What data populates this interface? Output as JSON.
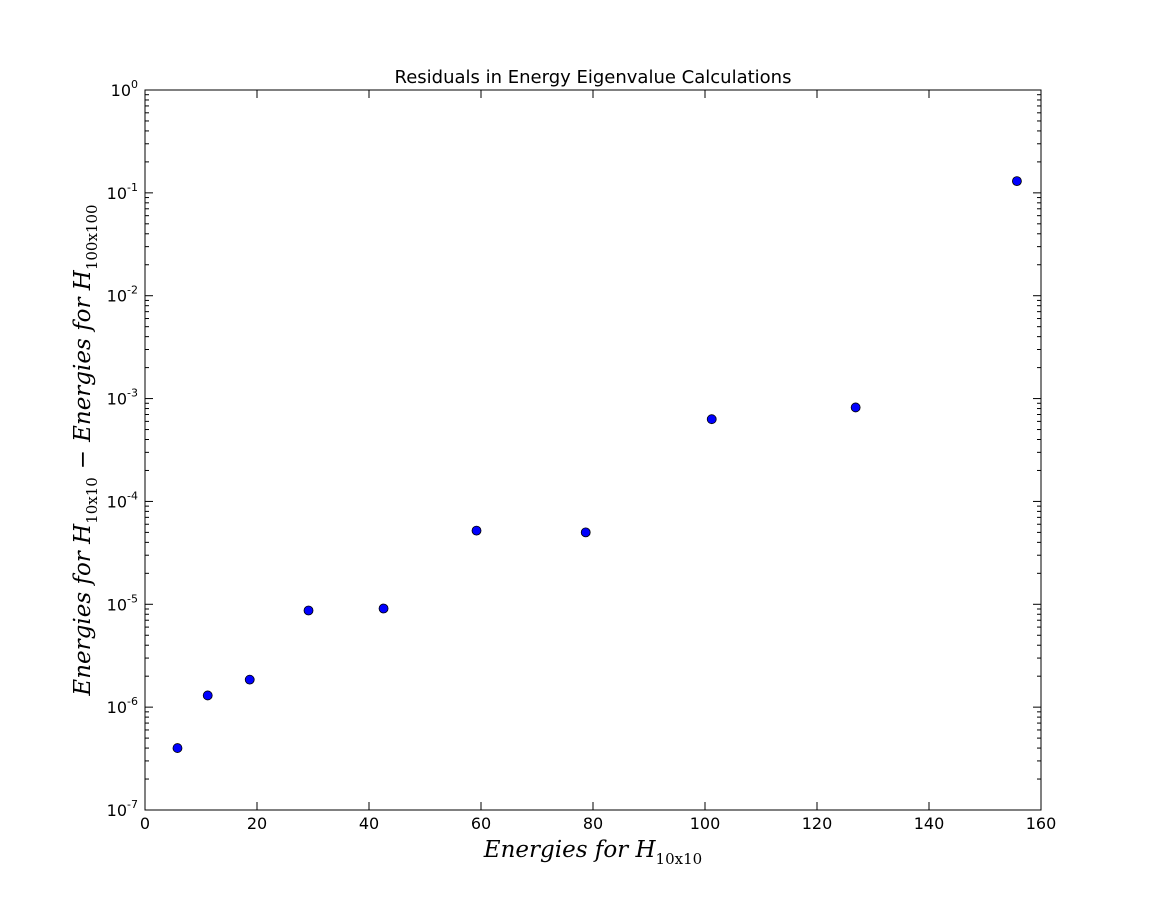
{
  "chart_data": {
    "type": "scatter",
    "title": "Residuals in Energy Eigenvalue Calculations",
    "xlabel": {
      "main": "Energies for H",
      "sub": "10x10"
    },
    "ylabel": {
      "part1": "Energies for H",
      "sub1": "10x10",
      "minus": "−",
      "part2": "Energies for H",
      "sub2": "100x100"
    },
    "xlim": [
      0,
      160
    ],
    "ylim": [
      1e-07,
      1
    ],
    "yscale": "log",
    "grid": false,
    "x_ticks": [
      "0",
      "20",
      "40",
      "60",
      "80",
      "100",
      "120",
      "140",
      "160"
    ],
    "y_ticks": [
      {
        "base": "10",
        "exp": "0"
      },
      {
        "base": "10",
        "exp": "-1"
      },
      {
        "base": "10",
        "exp": "-2"
      },
      {
        "base": "10",
        "exp": "-3"
      },
      {
        "base": "10",
        "exp": "-4"
      },
      {
        "base": "10",
        "exp": "-5"
      },
      {
        "base": "10",
        "exp": "-6"
      },
      {
        "base": "10",
        "exp": "-7"
      }
    ],
    "marker_color": "#0000ff",
    "marker_edge": "#000000",
    "points": [
      {
        "x": 5.8,
        "y": 4e-07
      },
      {
        "x": 11.2,
        "y": 1.3e-06
      },
      {
        "x": 18.7,
        "y": 1.85e-06
      },
      {
        "x": 29.2,
        "y": 8.7e-06
      },
      {
        "x": 42.6,
        "y": 9.1e-06
      },
      {
        "x": 59.2,
        "y": 5.2e-05
      },
      {
        "x": 78.7,
        "y": 5e-05
      },
      {
        "x": 101.2,
        "y": 0.00063
      },
      {
        "x": 126.9,
        "y": 0.00082
      },
      {
        "x": 155.7,
        "y": 0.13
      }
    ]
  }
}
